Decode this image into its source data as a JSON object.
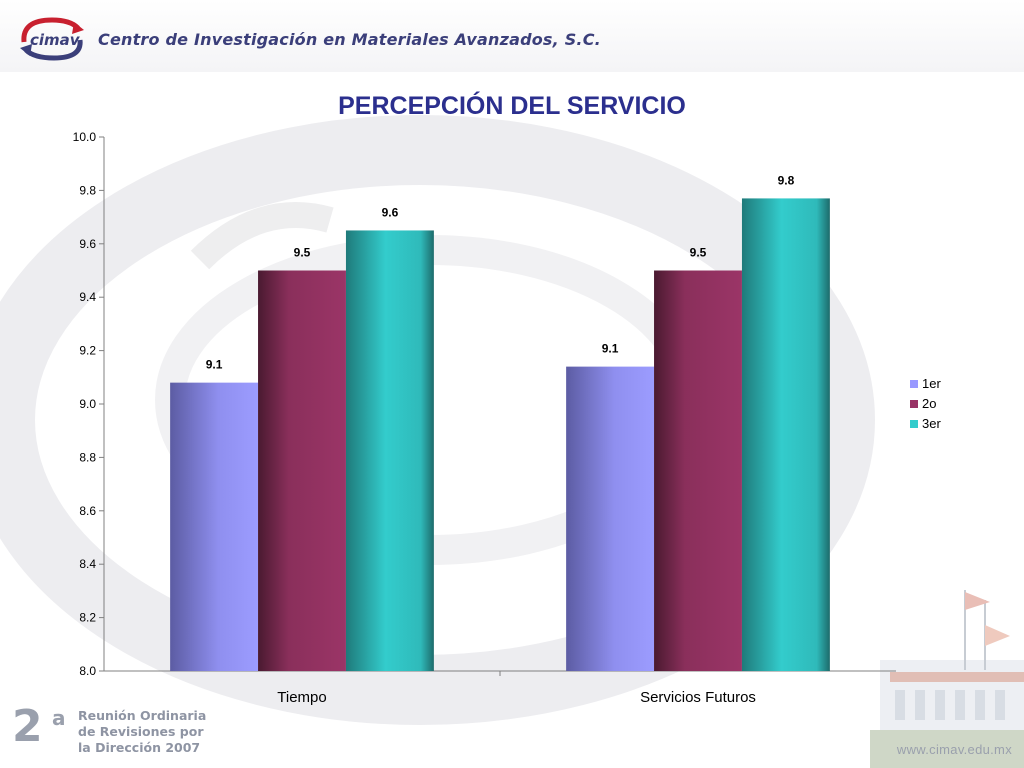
{
  "header": {
    "org_name": "Centro de Investigación en Materiales Avanzados, S.C.",
    "logo_text": "cimav"
  },
  "footer": {
    "meeting_number": "2",
    "meeting_superscript": "a",
    "meeting_lines": [
      "Reunión Ordinaria",
      "de Revisiones por",
      "la Dirección 2007"
    ],
    "url": "www.cimav.edu.mx"
  },
  "colors": {
    "title": "#2b2f8e",
    "series_1er": "#9999ff",
    "series_2o": "#993366",
    "series_3er": "#33cccc"
  },
  "chart_data": {
    "type": "bar",
    "title": "PERCEPCIÓN DEL SERVICIO",
    "categories": [
      "Tiempo",
      "Servicios Futuros"
    ],
    "series": [
      {
        "name": "1er",
        "values": [
          9.08,
          9.14
        ],
        "labels": [
          "9.1",
          "9.1"
        ]
      },
      {
        "name": "2o",
        "values": [
          9.5,
          9.5
        ],
        "labels": [
          "9.5",
          "9.5"
        ]
      },
      {
        "name": "3er",
        "values": [
          9.65,
          9.77
        ],
        "labels": [
          "9.6",
          "9.8"
        ]
      }
    ],
    "ylim": [
      8.0,
      10.0
    ],
    "yticks": [
      "8.0",
      "8.2",
      "8.4",
      "8.6",
      "8.8",
      "9.0",
      "9.2",
      "9.4",
      "9.6",
      "9.8",
      "10.0"
    ],
    "ytick_values": [
      8.0,
      8.2,
      8.4,
      8.6,
      8.8,
      9.0,
      9.2,
      9.4,
      9.6,
      9.8,
      10.0
    ],
    "grid": false,
    "legend_position": "right"
  }
}
